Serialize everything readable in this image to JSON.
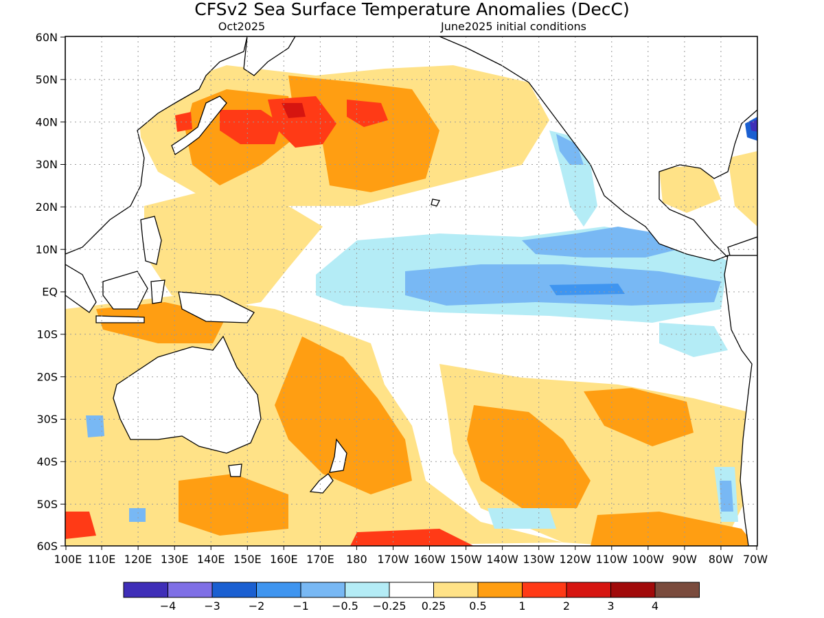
{
  "title": "CFSv2 Sea Surface Temperature Anomalies (DecC)",
  "subtitle_left": "Oct2025",
  "subtitle_right": "June2025 initial conditions",
  "lat_labels": [
    "60N",
    "50N",
    "40N",
    "30N",
    "20N",
    "10N",
    "EQ",
    "10S",
    "20S",
    "30S",
    "40S",
    "50S",
    "60S"
  ],
  "lon_labels": [
    "100E",
    "110E",
    "120E",
    "130E",
    "140E",
    "150E",
    "160E",
    "170E",
    "180",
    "170W",
    "160W",
    "150W",
    "140W",
    "130W",
    "120W",
    "110W",
    "100W",
    "90W",
    "80W",
    "70W"
  ],
  "colorbar": {
    "colors": [
      "#3f2eb8",
      "#7f6fe6",
      "#1a5fd1",
      "#3f95f0",
      "#78b8f4",
      "#b4ecf6",
      "#ffffff",
      "#ffe287",
      "#ff9e12",
      "#ff3a16",
      "#d61510",
      "#a10a0a",
      "#7a4b3d"
    ],
    "labels": [
      "−4",
      "−3",
      "−2",
      "−1",
      "−0.5",
      "−0.25",
      "0.25",
      "0.5",
      "1",
      "2",
      "3",
      "4"
    ]
  },
  "colors": {
    "land": "#ffffff",
    "coast": "#000000",
    "grid": "#9a9a9a"
  }
}
